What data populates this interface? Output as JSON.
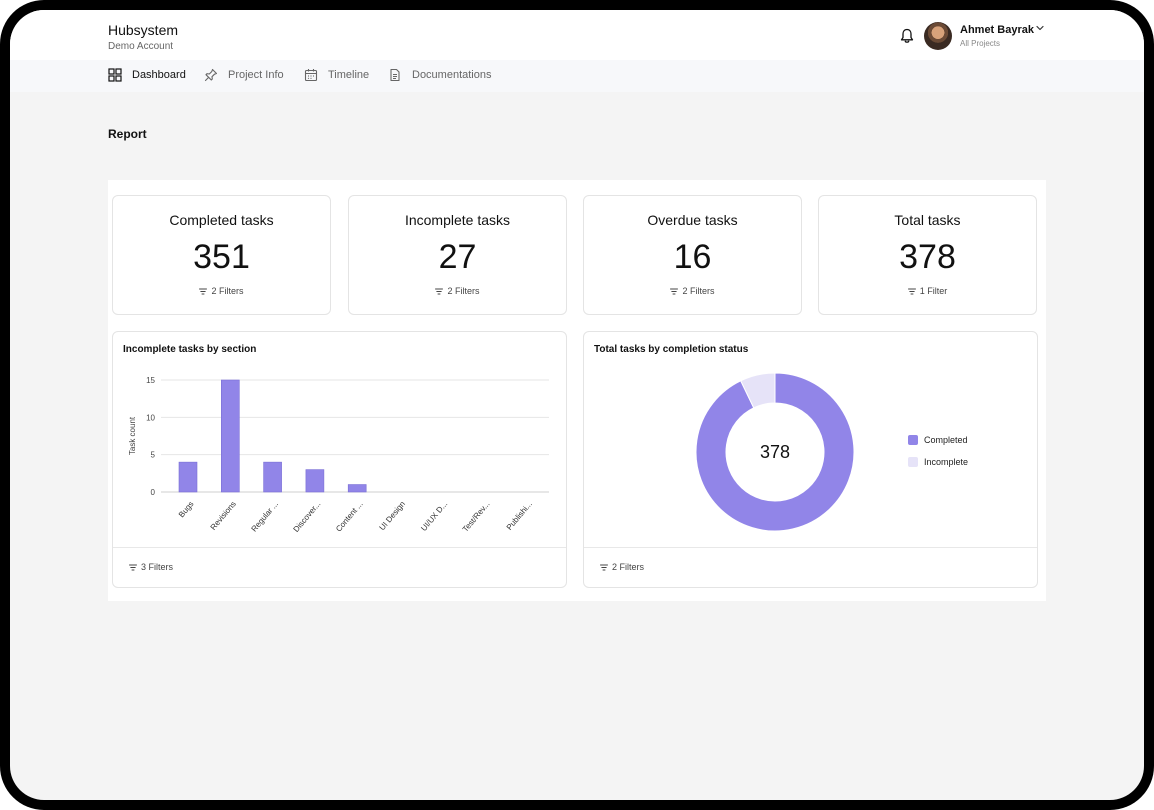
{
  "app": {
    "name": "Hubsystem",
    "account": "Demo Account"
  },
  "user": {
    "name": "Ahmet Bayrak",
    "subtitle": "All Projects"
  },
  "icons": {
    "notifications": "bell-icon",
    "user_menu": "chevron-down-icon",
    "dashboard": "grid-icon",
    "project_info": "pin-icon",
    "timeline": "calendar-icon",
    "documentations": "document-icon",
    "filter": "filter-icon"
  },
  "nav": {
    "items": [
      {
        "label": "Dashboard",
        "active": true
      },
      {
        "label": "Project Info",
        "active": false
      },
      {
        "label": "Timeline",
        "active": false
      },
      {
        "label": "Documentations",
        "active": false
      }
    ]
  },
  "page": {
    "title": "Report"
  },
  "stats": [
    {
      "title": "Completed tasks",
      "value": "351",
      "filter": "2 Filters"
    },
    {
      "title": "Incomplete tasks",
      "value": "27",
      "filter": "2 Filters"
    },
    {
      "title": "Overdue tasks",
      "value": "16",
      "filter": "2 Filters"
    },
    {
      "title": "Total tasks",
      "value": "378",
      "filter": "1 Filter"
    }
  ],
  "colors": {
    "accent": "#9185e8",
    "accent_light": "#e6e3f8",
    "grid": "#e6e6e6",
    "axis_text": "#444444"
  },
  "chart_data": [
    {
      "type": "bar",
      "title": "Incomplete tasks by section",
      "ylabel": "Task count",
      "xlabel": "",
      "categories": [
        "Bugs",
        "Revisions",
        "Regular ...",
        "Discover...",
        "Content ...",
        "UI Design",
        "UI/UX D...",
        "Test/Rev...",
        "Publishi..."
      ],
      "values": [
        4,
        15,
        4,
        3,
        1,
        0,
        0,
        0,
        0
      ],
      "ylim": [
        0,
        15
      ],
      "yticks": [
        0,
        5,
        10,
        15
      ],
      "grid": true,
      "filter": "3 Filters"
    },
    {
      "type": "pie",
      "title": "Total tasks by completion status",
      "center_label": "378",
      "labels": [
        "Completed",
        "Incomplete"
      ],
      "values": [
        351,
        27
      ],
      "legend": "right",
      "filter": "2 Filters"
    }
  ]
}
